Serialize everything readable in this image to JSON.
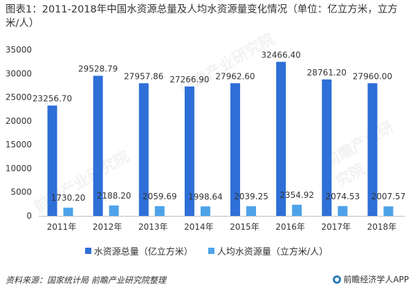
{
  "title": "图表1：2011-2018年中国水资源总量及人均水资源量变化情况（单位：亿立方米，立方米/人）",
  "source": "资料来源：国家统计局 前瞻产业研究院整理",
  "brand": "前瞻经济学人APP",
  "watermark": "前瞻产业研究院",
  "colors": {
    "series1": "#2e6fd8",
    "series2": "#4da3ea",
    "axis": "#bfbfbf",
    "text": "#333333"
  },
  "chart_data": {
    "type": "bar",
    "title": "图表1：2011-2018年中国水资源总量及人均水资源量变化情况（单位：亿立方米，立方米/人）",
    "categories": [
      "2011年",
      "2012年",
      "2013年",
      "2014年",
      "2015年",
      "2016年",
      "2017年",
      "2018年"
    ],
    "series": [
      {
        "name": "水资源总量（亿立方米）",
        "values": [
          23256.7,
          29528.79,
          27957.86,
          27266.9,
          27962.6,
          32466.4,
          28761.2,
          27960.0
        ],
        "labels": [
          "23256.70",
          "29528.79",
          "27957.86",
          "27266.90",
          "27962.60",
          "32466.40",
          "28761.20",
          "27960.00"
        ]
      },
      {
        "name": "人均水资源量（立方米/人）",
        "values": [
          1730.2,
          2188.2,
          2059.69,
          1998.64,
          2039.25,
          2354.92,
          2074.53,
          2007.57
        ],
        "labels": [
          "1730.20",
          "2188.20",
          "2059.69",
          "1998.64",
          "2039.25",
          "2354.92",
          "2074.53",
          "2007.57"
        ]
      }
    ],
    "yticks": [
      "0",
      "5000",
      "10000",
      "15000",
      "20000",
      "25000",
      "30000",
      "35000"
    ],
    "ylim": [
      0,
      35000
    ],
    "grid": false,
    "legend": "bottom"
  }
}
